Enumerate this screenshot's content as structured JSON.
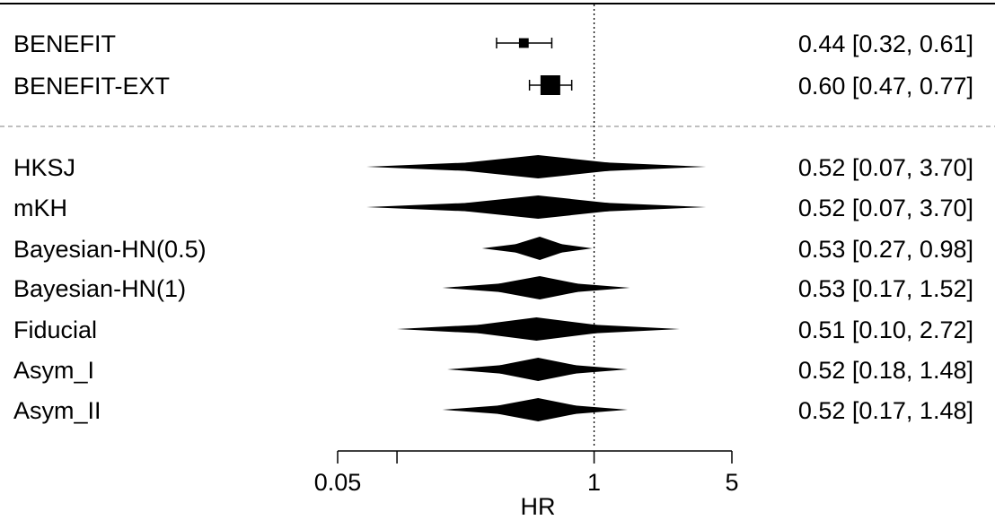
{
  "chart_data": {
    "type": "forest",
    "xlabel": "HR",
    "xscale": "log",
    "xlim": [
      0.05,
      5
    ],
    "xticks": [
      0.05,
      0.1,
      1,
      5
    ],
    "xtick_labels": [
      "0.05",
      "",
      "1",
      "5"
    ],
    "reference_line": 1,
    "studies": [
      {
        "label": "BENEFIT",
        "est": 0.44,
        "lo": 0.32,
        "hi": 0.61,
        "ci_text": "0.44 [0.32, 0.61]",
        "weight": 0.3
      },
      {
        "label": "BENEFIT-EXT",
        "est": 0.6,
        "lo": 0.47,
        "hi": 0.77,
        "ci_text": "0.60 [0.47, 0.77]",
        "weight": 1.0
      }
    ],
    "estimates": [
      {
        "label": "HKSJ",
        "est": 0.52,
        "lo": 0.07,
        "hi": 3.7,
        "ci_text": "0.52 [0.07, 3.70]"
      },
      {
        "label": "mKH",
        "est": 0.52,
        "lo": 0.07,
        "hi": 3.7,
        "ci_text": "0.52 [0.07, 3.70]"
      },
      {
        "label": "Bayesian-HN(0.5)",
        "est": 0.53,
        "lo": 0.27,
        "hi": 0.98,
        "ci_text": "0.53 [0.27, 0.98]"
      },
      {
        "label": "Bayesian-HN(1)",
        "est": 0.53,
        "lo": 0.17,
        "hi": 1.52,
        "ci_text": "0.53 [0.17, 1.52]"
      },
      {
        "label": "Fiducial",
        "est": 0.51,
        "lo": 0.1,
        "hi": 2.72,
        "ci_text": "0.51 [0.10, 2.72]"
      },
      {
        "label": "Asym_I",
        "est": 0.52,
        "lo": 0.18,
        "hi": 1.48,
        "ci_text": "0.52 [0.18, 1.48]"
      },
      {
        "label": "Asym_II",
        "est": 0.52,
        "lo": 0.17,
        "hi": 1.48,
        "ci_text": "0.52 [0.17, 1.48]"
      }
    ]
  }
}
